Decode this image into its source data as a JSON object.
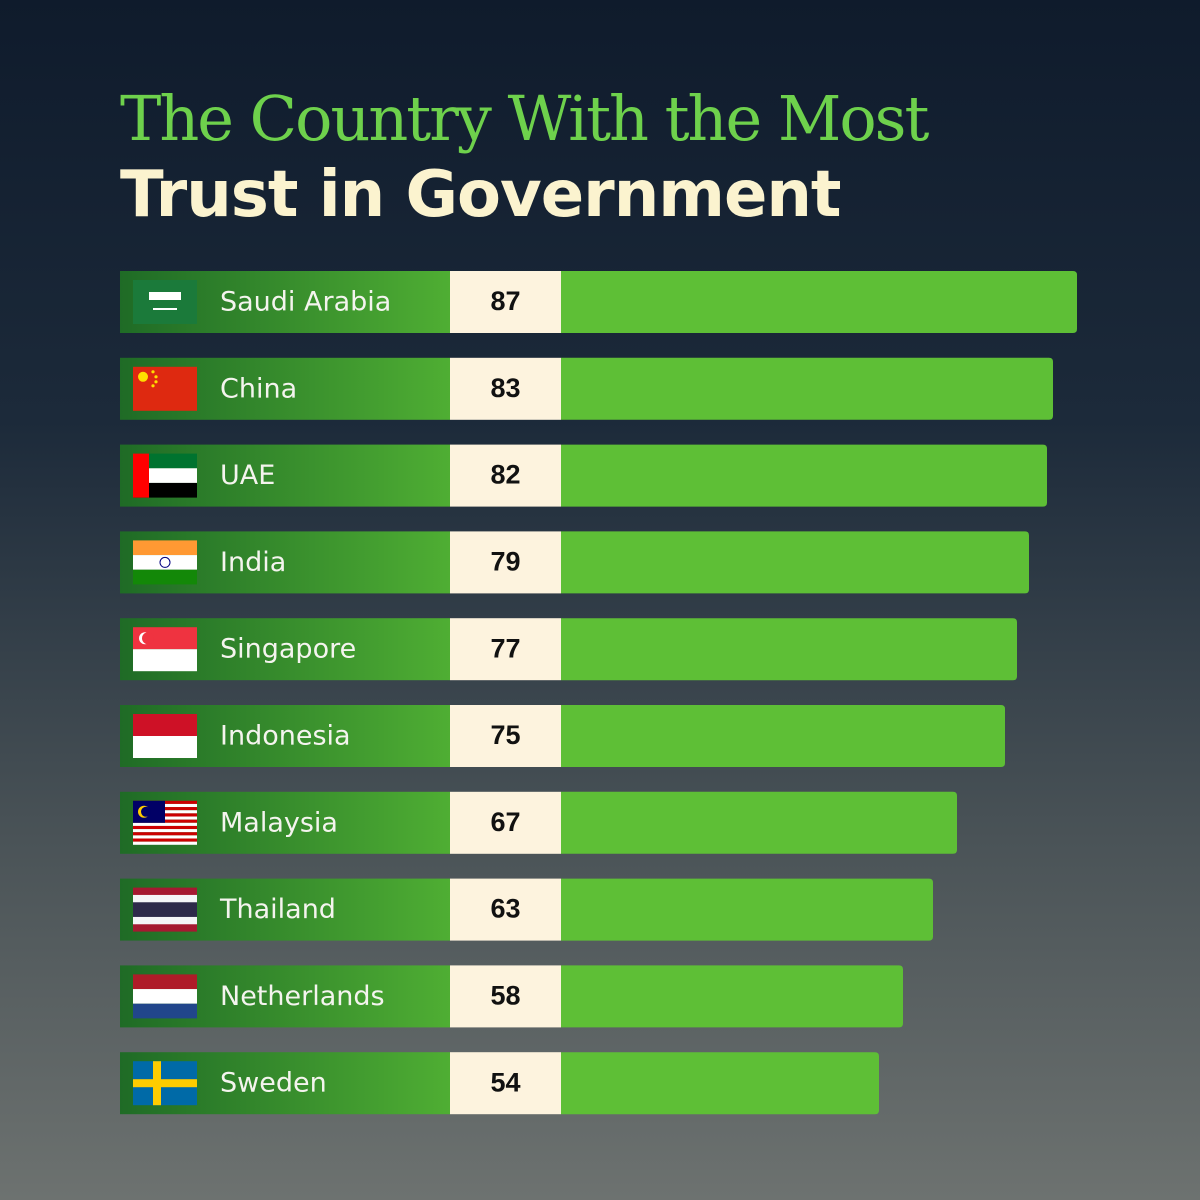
{
  "chart_data": {
    "type": "bar",
    "title": "The Country With the Most",
    "subtitle": "Trust in Government",
    "categories": [
      "Saudi Arabia",
      "China",
      "UAE",
      "India",
      "Singapore",
      "Indonesia",
      "Malaysia",
      "Thailand",
      "Netherlands",
      "Sweden"
    ],
    "values": [
      87,
      83,
      82,
      79,
      77,
      75,
      67,
      63,
      58,
      54
    ],
    "color": "#5ebf36"
  }
}
